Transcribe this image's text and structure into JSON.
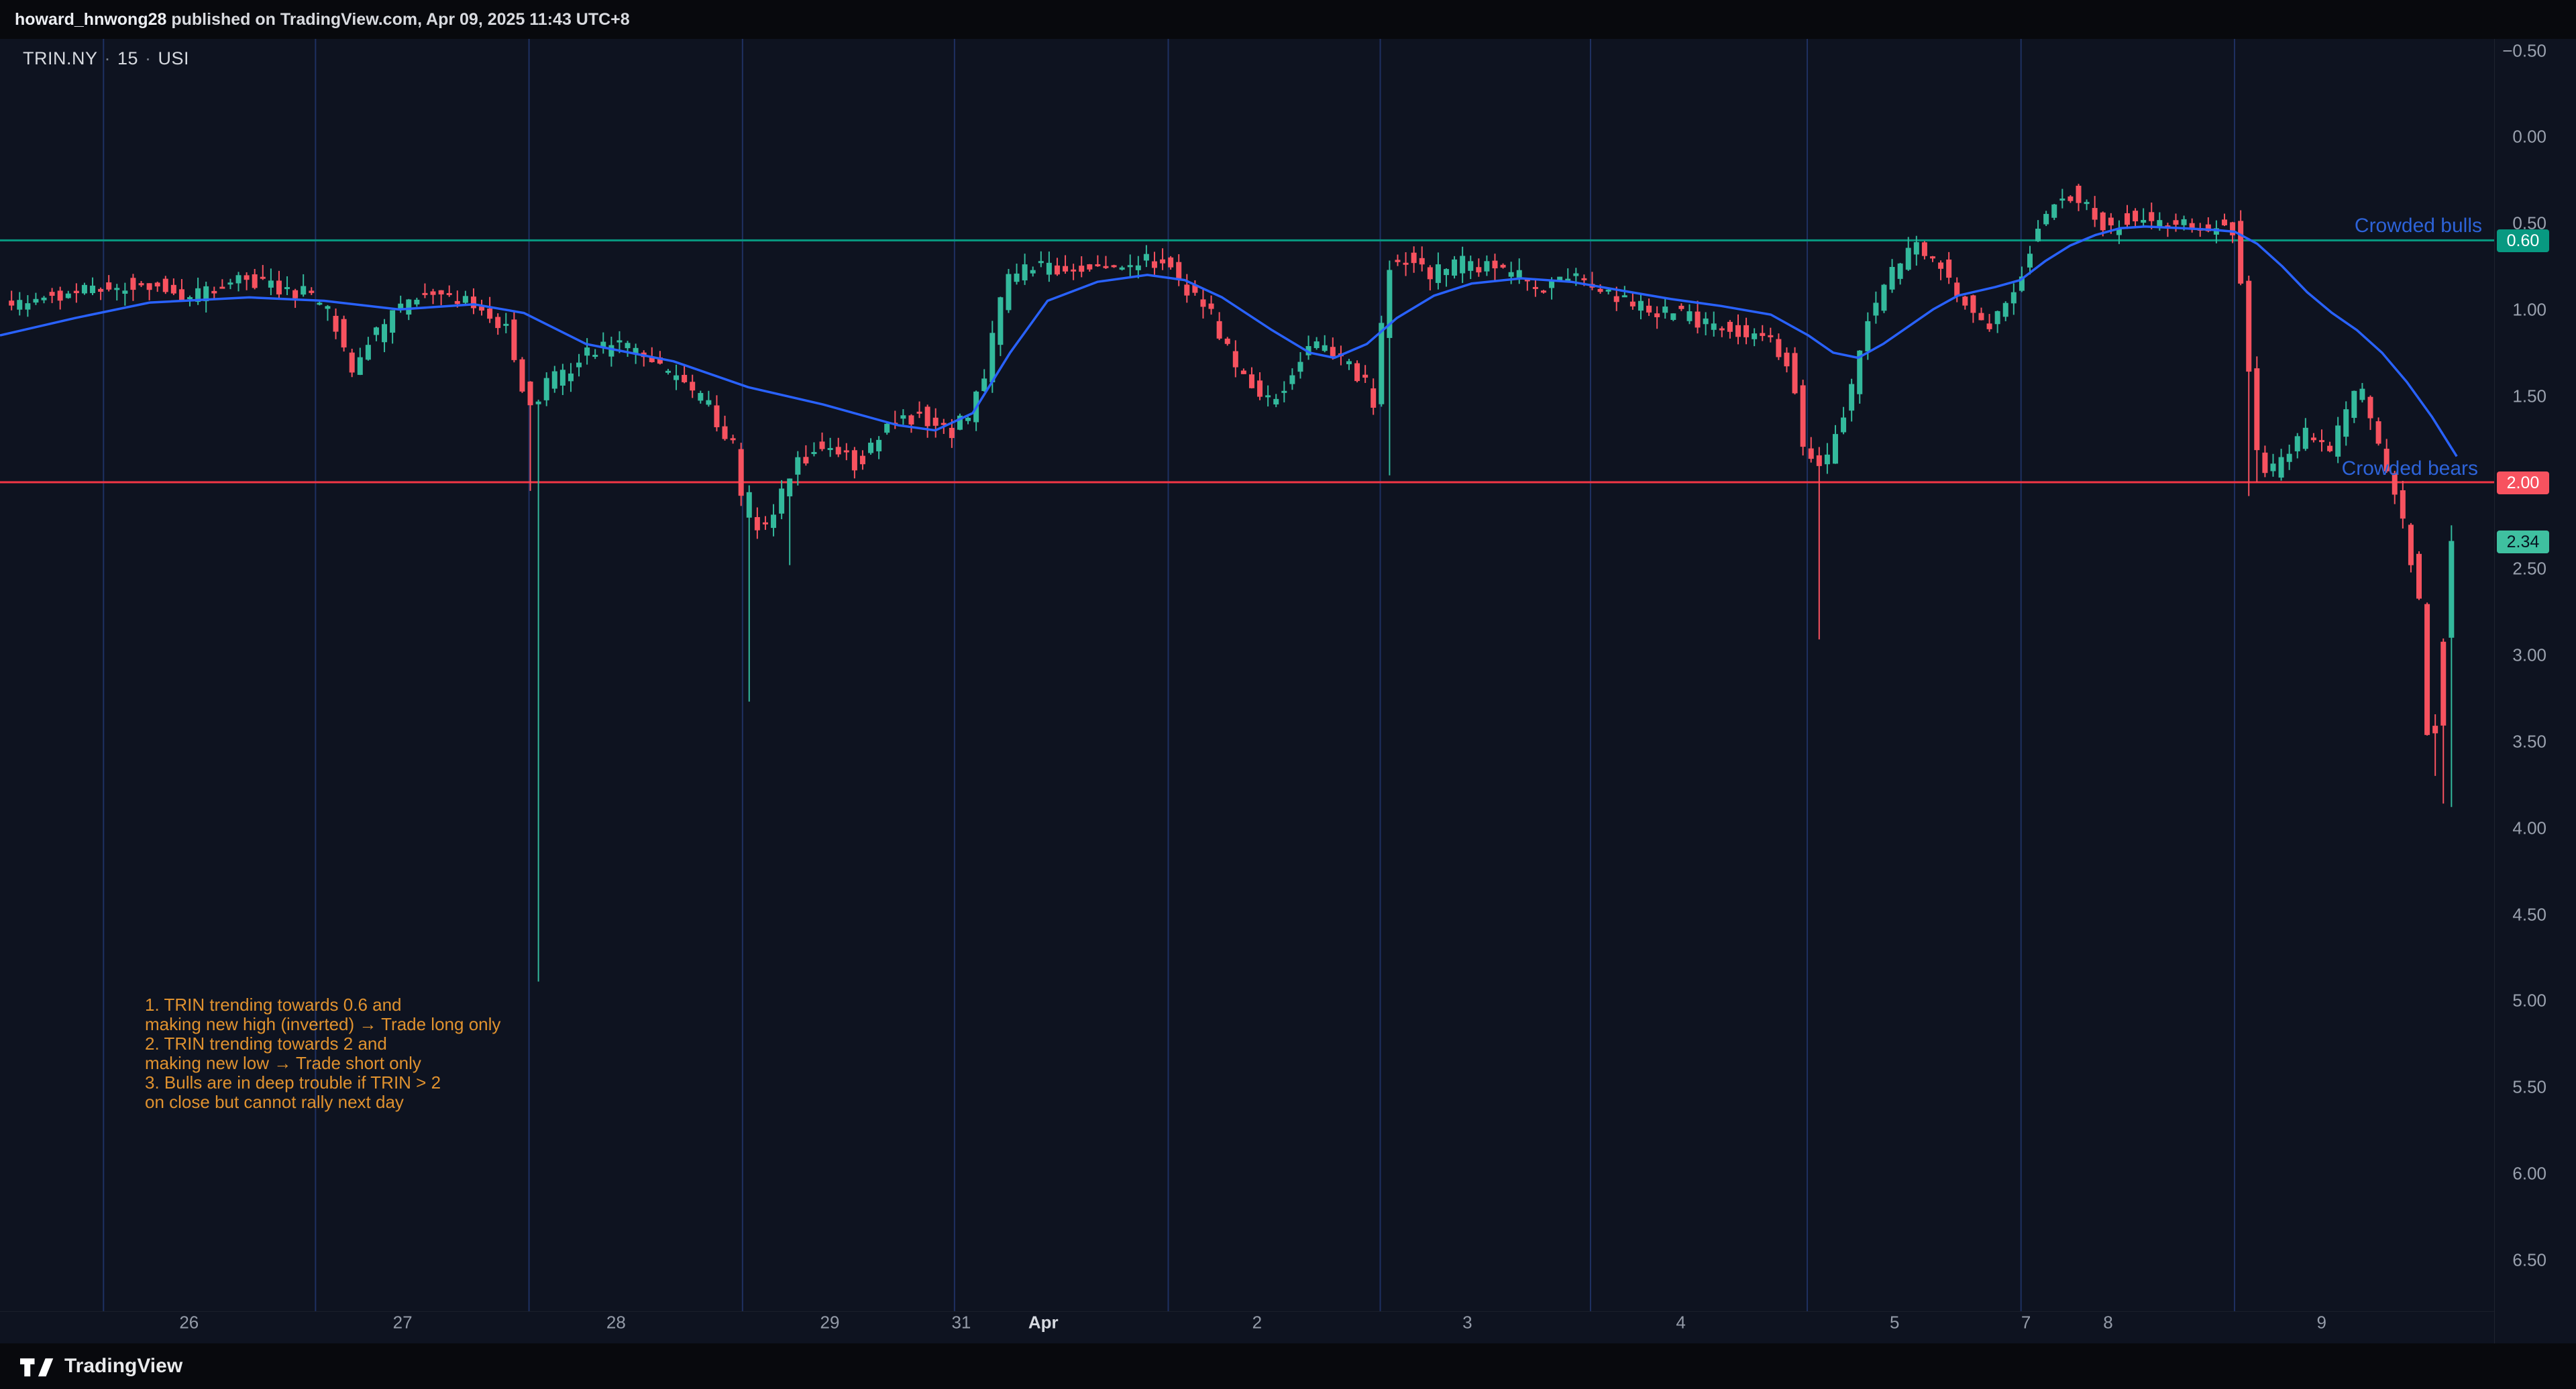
{
  "topbar": {
    "username": "howard_hnwong28",
    "suffix": " published on TradingView.com, Apr 09, 2025 11:43 UTC+8"
  },
  "legend": {
    "symbol": "TRIN.NY",
    "separator": "·",
    "interval": "15",
    "exchange": "USI"
  },
  "annotations": {
    "crowded_bulls": "Crowded bulls",
    "crowded_bears": "Crowded bears",
    "notes_lines": [
      "1. TRIN trending towards 0.6 and",
      "making new high (inverted) → Trade long only",
      "2. TRIN trending towards 2 and",
      "making new low → Trade short only",
      "3. Bulls are in deep trouble if TRIN > 2",
      "on close but cannot rally next day"
    ]
  },
  "footer": {
    "brand": "TradingView"
  },
  "colors": {
    "background": "#0e1320",
    "frame": "#08090d",
    "up_candle": "#33b99c",
    "down_candle": "#f7525f",
    "ma_line": "#2962ff",
    "bull_level": "#089981",
    "bear_level": "#f23645",
    "session_grid": "rgba(58,98,205,0.38)",
    "axis_text": "#9aa1ae",
    "annotation_text": "#e0922f",
    "crowded_text": "#2d63d9",
    "last_badge_bg": "#3fc0a0"
  },
  "chart_data": {
    "type": "candlestick",
    "symbol": "TRIN.NY",
    "interval": "15",
    "exchange": "USI",
    "inverted_y_axis": true,
    "y_ticks": [
      {
        "value": -0.5,
        "label": "−0.50"
      },
      {
        "value": 0.0,
        "label": "0.00"
      },
      {
        "value": 0.5,
        "label": "0.50"
      },
      {
        "value": 1.0,
        "label": "1.00"
      },
      {
        "value": 1.5,
        "label": "1.50"
      },
      {
        "value": 2.0,
        "label": "2.00"
      },
      {
        "value": 2.5,
        "label": "2.50"
      },
      {
        "value": 3.0,
        "label": "3.00"
      },
      {
        "value": 3.5,
        "label": "3.50"
      },
      {
        "value": 4.0,
        "label": "4.00"
      },
      {
        "value": 4.5,
        "label": "4.50"
      },
      {
        "value": 5.0,
        "label": "5.00"
      },
      {
        "value": 5.5,
        "label": "5.50"
      },
      {
        "value": 6.0,
        "label": "6.00"
      },
      {
        "value": 6.5,
        "label": "6.50"
      }
    ],
    "x_gridlines_t": [
      0.0415,
      0.1265,
      0.2121,
      0.2977,
      0.3827,
      0.4684,
      0.5534,
      0.6377,
      0.7246,
      0.8103,
      0.8959
    ],
    "x_day_labels": [
      {
        "t": 0.0758,
        "label": "26"
      },
      {
        "t": 0.1614,
        "label": "27"
      },
      {
        "t": 0.247,
        "label": "28"
      },
      {
        "t": 0.3327,
        "label": "29"
      },
      {
        "t": 0.3854,
        "label": "31"
      },
      {
        "t": 0.4183,
        "label": "Apr",
        "month": true
      },
      {
        "t": 0.504,
        "label": "2"
      },
      {
        "t": 0.5883,
        "label": "3"
      },
      {
        "t": 0.6739,
        "label": "4"
      },
      {
        "t": 0.7596,
        "label": "5"
      },
      {
        "t": 0.8123,
        "label": "7"
      },
      {
        "t": 0.8452,
        "label": "8"
      },
      {
        "t": 0.9308,
        "label": "9"
      }
    ],
    "levels": [
      {
        "value": 0.6,
        "label": "0.60",
        "kind": "crowded-bulls"
      },
      {
        "value": 2.0,
        "label": "2.00",
        "kind": "crowded-bears"
      }
    ],
    "last_price": 2.34,
    "last_price_label": "2.34",
    "bar_count": 302,
    "price_path": [
      [
        0.0,
        1.0
      ],
      [
        0.01,
        0.96
      ],
      [
        0.03,
        0.9
      ],
      [
        0.042,
        0.88
      ],
      [
        0.06,
        0.85
      ],
      [
        0.08,
        0.92
      ],
      [
        0.1,
        0.84
      ],
      [
        0.115,
        0.88
      ],
      [
        0.127,
        0.92
      ],
      [
        0.135,
        1.05
      ],
      [
        0.142,
        1.35
      ],
      [
        0.15,
        1.18
      ],
      [
        0.165,
        0.95
      ],
      [
        0.18,
        0.9
      ],
      [
        0.195,
        1.0
      ],
      [
        0.205,
        1.1
      ],
      [
        0.211,
        1.45
      ],
      [
        0.214,
        1.58
      ],
      [
        0.22,
        1.45
      ],
      [
        0.235,
        1.28
      ],
      [
        0.25,
        1.2
      ],
      [
        0.265,
        1.32
      ],
      [
        0.285,
        1.55
      ],
      [
        0.2955,
        1.8
      ],
      [
        0.3,
        2.2
      ],
      [
        0.31,
        2.28
      ],
      [
        0.316,
        2.0
      ],
      [
        0.33,
        1.75
      ],
      [
        0.345,
        1.9
      ],
      [
        0.355,
        1.72
      ],
      [
        0.37,
        1.6
      ],
      [
        0.383,
        1.7
      ],
      [
        0.39,
        1.62
      ],
      [
        0.396,
        1.4
      ],
      [
        0.401,
        1.05
      ],
      [
        0.406,
        0.82
      ],
      [
        0.415,
        0.75
      ],
      [
        0.43,
        0.8
      ],
      [
        0.44,
        0.72
      ],
      [
        0.45,
        0.78
      ],
      [
        0.456,
        0.72
      ],
      [
        0.468,
        0.72
      ],
      [
        0.476,
        0.86
      ],
      [
        0.486,
        1.0
      ],
      [
        0.496,
        1.3
      ],
      [
        0.506,
        1.45
      ],
      [
        0.512,
        1.55
      ],
      [
        0.521,
        1.3
      ],
      [
        0.531,
        1.2
      ],
      [
        0.541,
        1.3
      ],
      [
        0.549,
        1.42
      ],
      [
        0.553,
        1.58
      ],
      [
        0.5575,
        0.76
      ],
      [
        0.565,
        0.7
      ],
      [
        0.575,
        0.8
      ],
      [
        0.59,
        0.72
      ],
      [
        0.605,
        0.78
      ],
      [
        0.62,
        0.86
      ],
      [
        0.631,
        0.8
      ],
      [
        0.64,
        0.86
      ],
      [
        0.652,
        0.95
      ],
      [
        0.666,
        1.0
      ],
      [
        0.68,
        1.05
      ],
      [
        0.695,
        1.1
      ],
      [
        0.71,
        1.16
      ],
      [
        0.72,
        1.32
      ],
      [
        0.7245,
        1.78
      ],
      [
        0.729,
        1.92
      ],
      [
        0.735,
        1.84
      ],
      [
        0.742,
        1.58
      ],
      [
        0.75,
        1.1
      ],
      [
        0.758,
        0.85
      ],
      [
        0.765,
        0.7
      ],
      [
        0.772,
        0.64
      ],
      [
        0.78,
        0.76
      ],
      [
        0.79,
        0.95
      ],
      [
        0.798,
        1.1
      ],
      [
        0.805,
        1.0
      ],
      [
        0.81,
        0.85
      ],
      [
        0.818,
        0.55
      ],
      [
        0.825,
        0.38
      ],
      [
        0.832,
        0.33
      ],
      [
        0.84,
        0.45
      ],
      [
        0.848,
        0.52
      ],
      [
        0.856,
        0.45
      ],
      [
        0.866,
        0.5
      ],
      [
        0.876,
        0.48
      ],
      [
        0.886,
        0.52
      ],
      [
        0.896,
        0.5
      ],
      [
        0.8985,
        0.62
      ],
      [
        0.9015,
        1.1
      ],
      [
        0.906,
        1.82
      ],
      [
        0.912,
        1.95
      ],
      [
        0.92,
        1.8
      ],
      [
        0.928,
        1.7
      ],
      [
        0.935,
        1.86
      ],
      [
        0.942,
        1.6
      ],
      [
        0.948,
        1.46
      ],
      [
        0.953,
        1.7
      ],
      [
        0.958,
        1.9
      ],
      [
        0.9625,
        2.1
      ],
      [
        0.9682,
        2.45
      ],
      [
        0.9715,
        2.7
      ],
      [
        0.975,
        3.55
      ],
      [
        0.978,
        3.45
      ],
      [
        0.9845,
        2.34
      ]
    ],
    "wick_spikes": [
      {
        "t": 0.2115,
        "v": 2.05,
        "candle": "down"
      },
      {
        "t": 0.2145,
        "v": 4.89,
        "candle": "up"
      },
      {
        "t": 0.2975,
        "v": 2.55,
        "candle": "down"
      },
      {
        "t": 0.3,
        "v": 3.27,
        "candle": "up"
      },
      {
        "t": 0.3135,
        "v": 2.48,
        "candle": "up"
      },
      {
        "t": 0.556,
        "v": 1.96,
        "candle": "up"
      },
      {
        "t": 0.728,
        "v": 2.91,
        "candle": "down"
      },
      {
        "t": 0.9,
        "v": 2.08,
        "candle": "down"
      },
      {
        "t": 0.9035,
        "v": 2.0,
        "candle": "down"
      },
      {
        "t": 0.975,
        "v": 3.7,
        "candle": "down"
      },
      {
        "t": 0.9785,
        "v": 3.86,
        "candle": "down"
      },
      {
        "t": 0.982,
        "v": 3.88,
        "candle": "up"
      }
    ],
    "ma_path": [
      [
        0.0,
        1.15
      ],
      [
        0.03,
        1.05
      ],
      [
        0.06,
        0.96
      ],
      [
        0.1,
        0.93
      ],
      [
        0.13,
        0.95
      ],
      [
        0.16,
        1.0
      ],
      [
        0.19,
        0.97
      ],
      [
        0.21,
        1.02
      ],
      [
        0.235,
        1.2
      ],
      [
        0.27,
        1.3
      ],
      [
        0.3,
        1.45
      ],
      [
        0.33,
        1.55
      ],
      [
        0.36,
        1.67
      ],
      [
        0.375,
        1.7
      ],
      [
        0.39,
        1.6
      ],
      [
        0.405,
        1.25
      ],
      [
        0.42,
        0.95
      ],
      [
        0.44,
        0.84
      ],
      [
        0.46,
        0.8
      ],
      [
        0.475,
        0.83
      ],
      [
        0.49,
        0.93
      ],
      [
        0.51,
        1.12
      ],
      [
        0.525,
        1.25
      ],
      [
        0.535,
        1.28
      ],
      [
        0.548,
        1.2
      ],
      [
        0.56,
        1.05
      ],
      [
        0.575,
        0.92
      ],
      [
        0.59,
        0.85
      ],
      [
        0.61,
        0.82
      ],
      [
        0.63,
        0.84
      ],
      [
        0.65,
        0.89
      ],
      [
        0.67,
        0.94
      ],
      [
        0.69,
        0.98
      ],
      [
        0.71,
        1.03
      ],
      [
        0.725,
        1.15
      ],
      [
        0.735,
        1.25
      ],
      [
        0.745,
        1.28
      ],
      [
        0.755,
        1.2
      ],
      [
        0.765,
        1.1
      ],
      [
        0.775,
        1.0
      ],
      [
        0.785,
        0.92
      ],
      [
        0.8,
        0.87
      ],
      [
        0.81,
        0.83
      ],
      [
        0.82,
        0.72
      ],
      [
        0.83,
        0.63
      ],
      [
        0.84,
        0.57
      ],
      [
        0.85,
        0.53
      ],
      [
        0.86,
        0.52
      ],
      [
        0.875,
        0.53
      ],
      [
        0.888,
        0.54
      ],
      [
        0.896,
        0.55
      ],
      [
        0.905,
        0.62
      ],
      [
        0.915,
        0.75
      ],
      [
        0.925,
        0.9
      ],
      [
        0.935,
        1.02
      ],
      [
        0.945,
        1.12
      ],
      [
        0.955,
        1.25
      ],
      [
        0.965,
        1.42
      ],
      [
        0.975,
        1.62
      ],
      [
        0.985,
        1.85
      ]
    ]
  }
}
